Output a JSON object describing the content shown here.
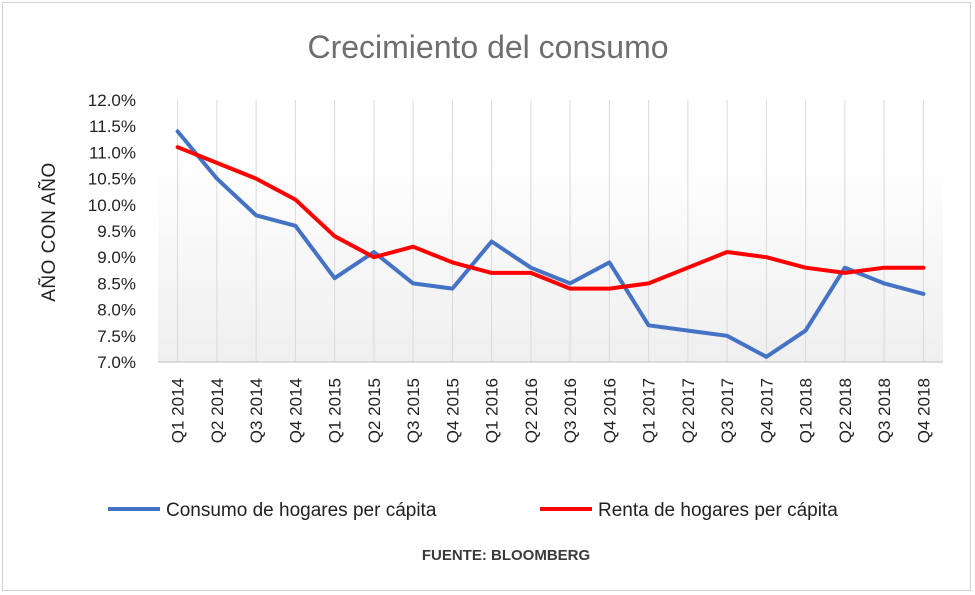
{
  "chart_data": {
    "type": "line",
    "title": "Crecimiento  del  consumo",
    "ylabel": "AÑO CON AÑO",
    "xlabel": "",
    "source": "FUENTE: BLOOMBERG",
    "ylim": [
      7.0,
      12.0
    ],
    "ystep": 0.5,
    "ytick_labels": [
      "7.0%",
      "7.5%",
      "8.0%",
      "8.5%",
      "9.0%",
      "9.5%",
      "10.0%",
      "10.5%",
      "11.0%",
      "11.5%",
      "12.0%"
    ],
    "categories": [
      "Q1 2014",
      "Q2 2014",
      "Q3 2014",
      "Q4 2014",
      "Q1 2015",
      "Q2 2015",
      "Q3 2015",
      "Q4 2015",
      "Q1 2016",
      "Q2 2016",
      "Q3 2016",
      "Q4 2016",
      "Q1 2017",
      "Q2 2017",
      "Q3 2017",
      "Q4 2017",
      "Q1 2018",
      "Q2 2018",
      "Q3 2018",
      "Q4 2018"
    ],
    "grid": "vertical",
    "legend_position": "bottom",
    "series": [
      {
        "name": "Consumo de hogares per cápita",
        "color": "#4472c4",
        "values": [
          11.4,
          10.5,
          9.8,
          9.6,
          8.6,
          9.1,
          8.5,
          8.4,
          9.3,
          8.8,
          8.5,
          8.9,
          7.7,
          7.6,
          7.5,
          7.1,
          7.6,
          8.8,
          8.5,
          8.3
        ]
      },
      {
        "name": "Renta de hogares per cápita",
        "color": "#ff0000",
        "values": [
          11.1,
          10.8,
          10.5,
          10.1,
          9.4,
          9.0,
          9.2,
          8.9,
          8.7,
          8.7,
          8.4,
          8.4,
          8.5,
          8.8,
          9.1,
          9.0,
          8.8,
          8.7,
          8.8,
          8.8
        ]
      }
    ]
  }
}
